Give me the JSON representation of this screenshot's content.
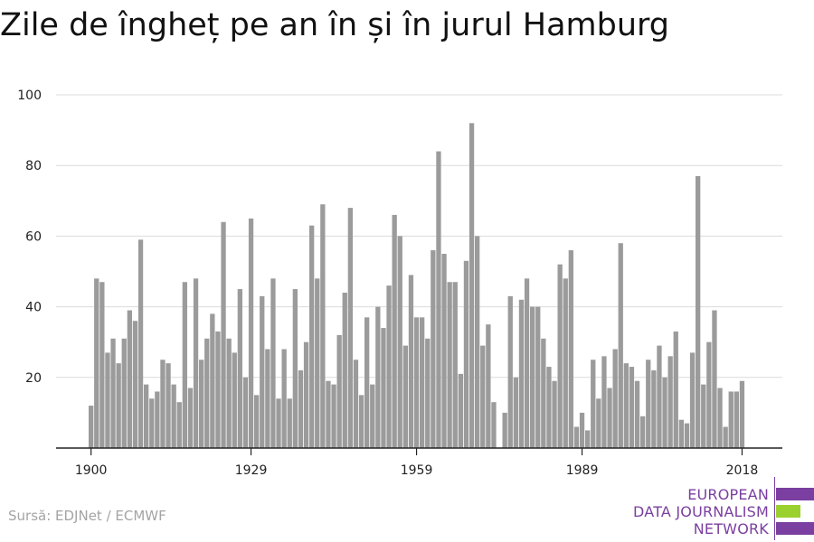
{
  "header": {
    "title": "Zile de îngheț pe an în și în jurul Hamburg"
  },
  "footer": {
    "source": "Sursă: EDJNet / ECMWF"
  },
  "logo": {
    "lines": [
      "EUROPEAN",
      "DATA JOURNALISM",
      "NETWORK"
    ],
    "colors": {
      "purple": "#7a3fa0",
      "green": "#9bd12f"
    }
  },
  "colors": {
    "bar": "#9b9b9b",
    "grid": "#dcdcdc",
    "axis": "#222222"
  },
  "chart_data": {
    "type": "bar",
    "title": "Zile de îngheț pe an în și în jurul Hamburg",
    "xlabel": "",
    "ylabel": "",
    "x_start": 1900,
    "x_end": 2018,
    "xticks": [
      1900,
      1929,
      1959,
      1989,
      2018
    ],
    "yticks": [
      20,
      40,
      60,
      80,
      100
    ],
    "ylim": [
      0,
      100
    ],
    "grid": true,
    "values": [
      12,
      48,
      47,
      27,
      31,
      24,
      31,
      39,
      36,
      59,
      18,
      14,
      16,
      25,
      24,
      18,
      13,
      47,
      17,
      48,
      25,
      31,
      38,
      33,
      64,
      31,
      27,
      45,
      20,
      65,
      15,
      43,
      28,
      48,
      14,
      28,
      14,
      45,
      22,
      30,
      63,
      48,
      69,
      19,
      18,
      32,
      44,
      68,
      25,
      15,
      37,
      18,
      40,
      34,
      46,
      66,
      60,
      29,
      49,
      37,
      37,
      31,
      56,
      84,
      55,
      47,
      47,
      21,
      53,
      92,
      60,
      29,
      35,
      13,
      0,
      10,
      43,
      20,
      42,
      48,
      40,
      40,
      31,
      23,
      19,
      52,
      48,
      56,
      6,
      10,
      5,
      25,
      14,
      26,
      17,
      28,
      58,
      24,
      23,
      19,
      9,
      25,
      22,
      29,
      20,
      26,
      33,
      8,
      7,
      27,
      77,
      18,
      30,
      39,
      17,
      6,
      16,
      16,
      19
    ]
  }
}
